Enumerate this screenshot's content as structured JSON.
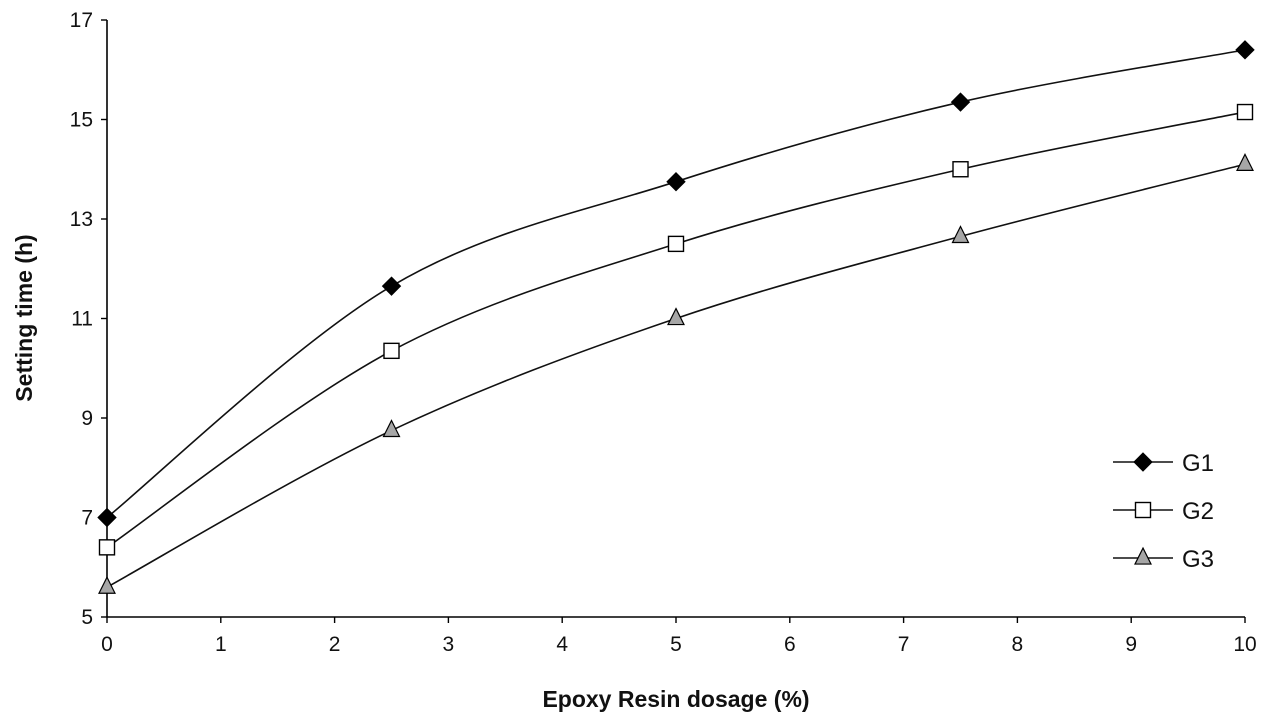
{
  "chart_data": {
    "type": "line",
    "title": "",
    "xlabel": "Epoxy Resin dosage (%)",
    "ylabel": "Setting time (h)",
    "xlim": [
      0,
      10
    ],
    "ylim": [
      5,
      17
    ],
    "x_ticks": [
      0,
      1,
      2,
      3,
      4,
      5,
      6,
      7,
      8,
      9,
      10
    ],
    "y_ticks": [
      5,
      7,
      9,
      11,
      13,
      15,
      17
    ],
    "grid": false,
    "smoothed": true,
    "legend_position": "right",
    "x": [
      0,
      2.5,
      5,
      7.5,
      10
    ],
    "series": [
      {
        "name": "G1",
        "values": [
          7.0,
          11.65,
          13.75,
          15.35,
          16.4
        ],
        "marker": "diamond",
        "marker_fill": "#000000",
        "color": "#111111"
      },
      {
        "name": "G2",
        "values": [
          6.4,
          10.35,
          12.5,
          14.0,
          15.15
        ],
        "marker": "square",
        "marker_fill": "#ffffff",
        "color": "#111111"
      },
      {
        "name": "G3",
        "values": [
          5.6,
          8.75,
          11.0,
          12.65,
          14.1
        ],
        "marker": "triangle",
        "marker_fill": "#a6a6a6",
        "color": "#111111"
      }
    ]
  }
}
